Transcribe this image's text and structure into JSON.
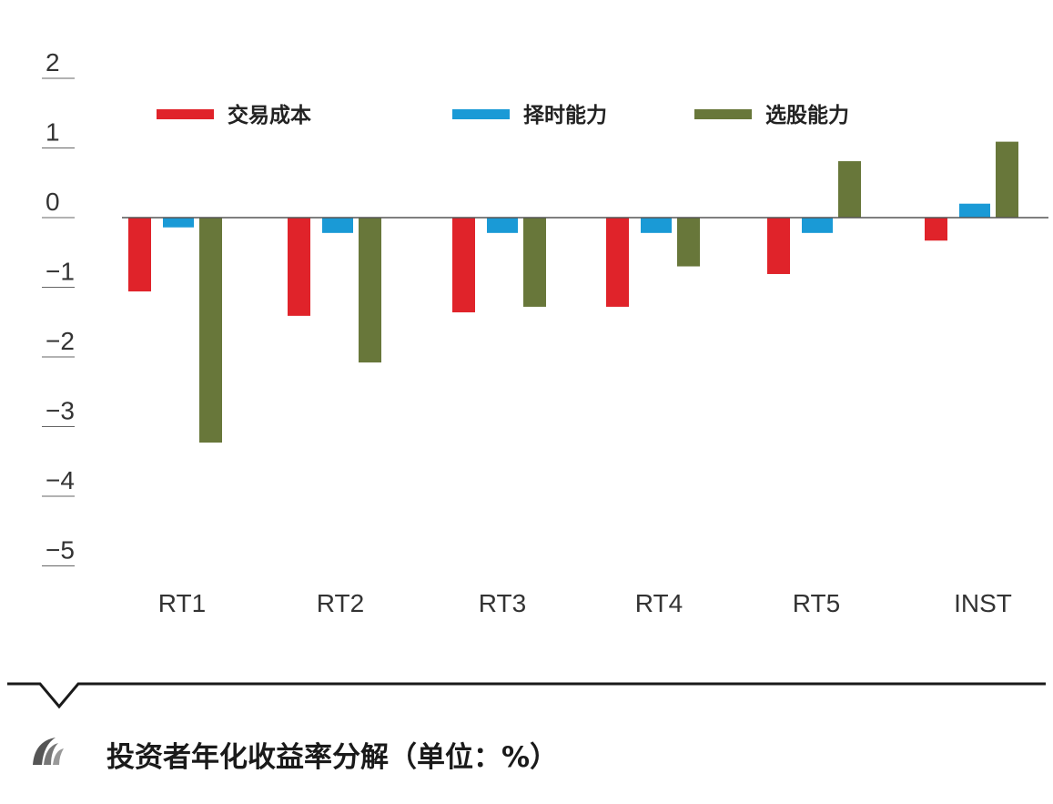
{
  "chart_data": {
    "type": "bar",
    "title": "投资者年化收益率分解（单位：%）",
    "categories": [
      "RT1",
      "RT2",
      "RT3",
      "RT4",
      "RT5",
      "INST"
    ],
    "series": [
      {
        "name": "交易成本",
        "color": "#e0232a",
        "values": [
          -1.06,
          -1.41,
          -1.36,
          -1.28,
          -0.81,
          -0.33
        ]
      },
      {
        "name": "择时能力",
        "color": "#1a9ad6",
        "values": [
          -0.14,
          -0.22,
          -0.22,
          -0.22,
          -0.22,
          0.2
        ]
      },
      {
        "name": "选股能力",
        "color": "#68773a",
        "values": [
          -3.23,
          -2.08,
          -1.28,
          -0.7,
          0.81,
          1.09
        ]
      }
    ],
    "y_ticks": [
      "2",
      "1",
      "0",
      "−1",
      "−2",
      "−3",
      "−4",
      "−5"
    ],
    "ylim": [
      -5,
      2
    ],
    "legend_position": "top",
    "grid": false
  },
  "caption": "投资者年化收益率分解（单位：%）"
}
